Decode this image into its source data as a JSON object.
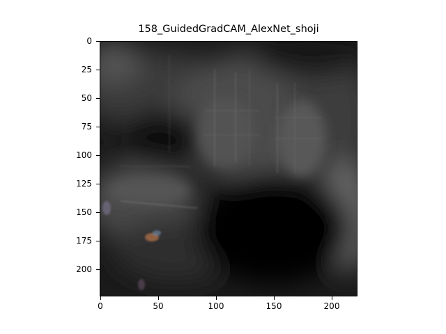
{
  "figure": {
    "title": "158_GuidedGradCAM_AlexNet_shoji",
    "y_ticks": [
      "0",
      "25",
      "50",
      "75",
      "100",
      "125",
      "150",
      "175",
      "200"
    ],
    "x_ticks": [
      "0",
      "50",
      "100",
      "150",
      "200"
    ],
    "x_range": [
      0,
      224
    ],
    "y_range": [
      0,
      224
    ]
  }
}
